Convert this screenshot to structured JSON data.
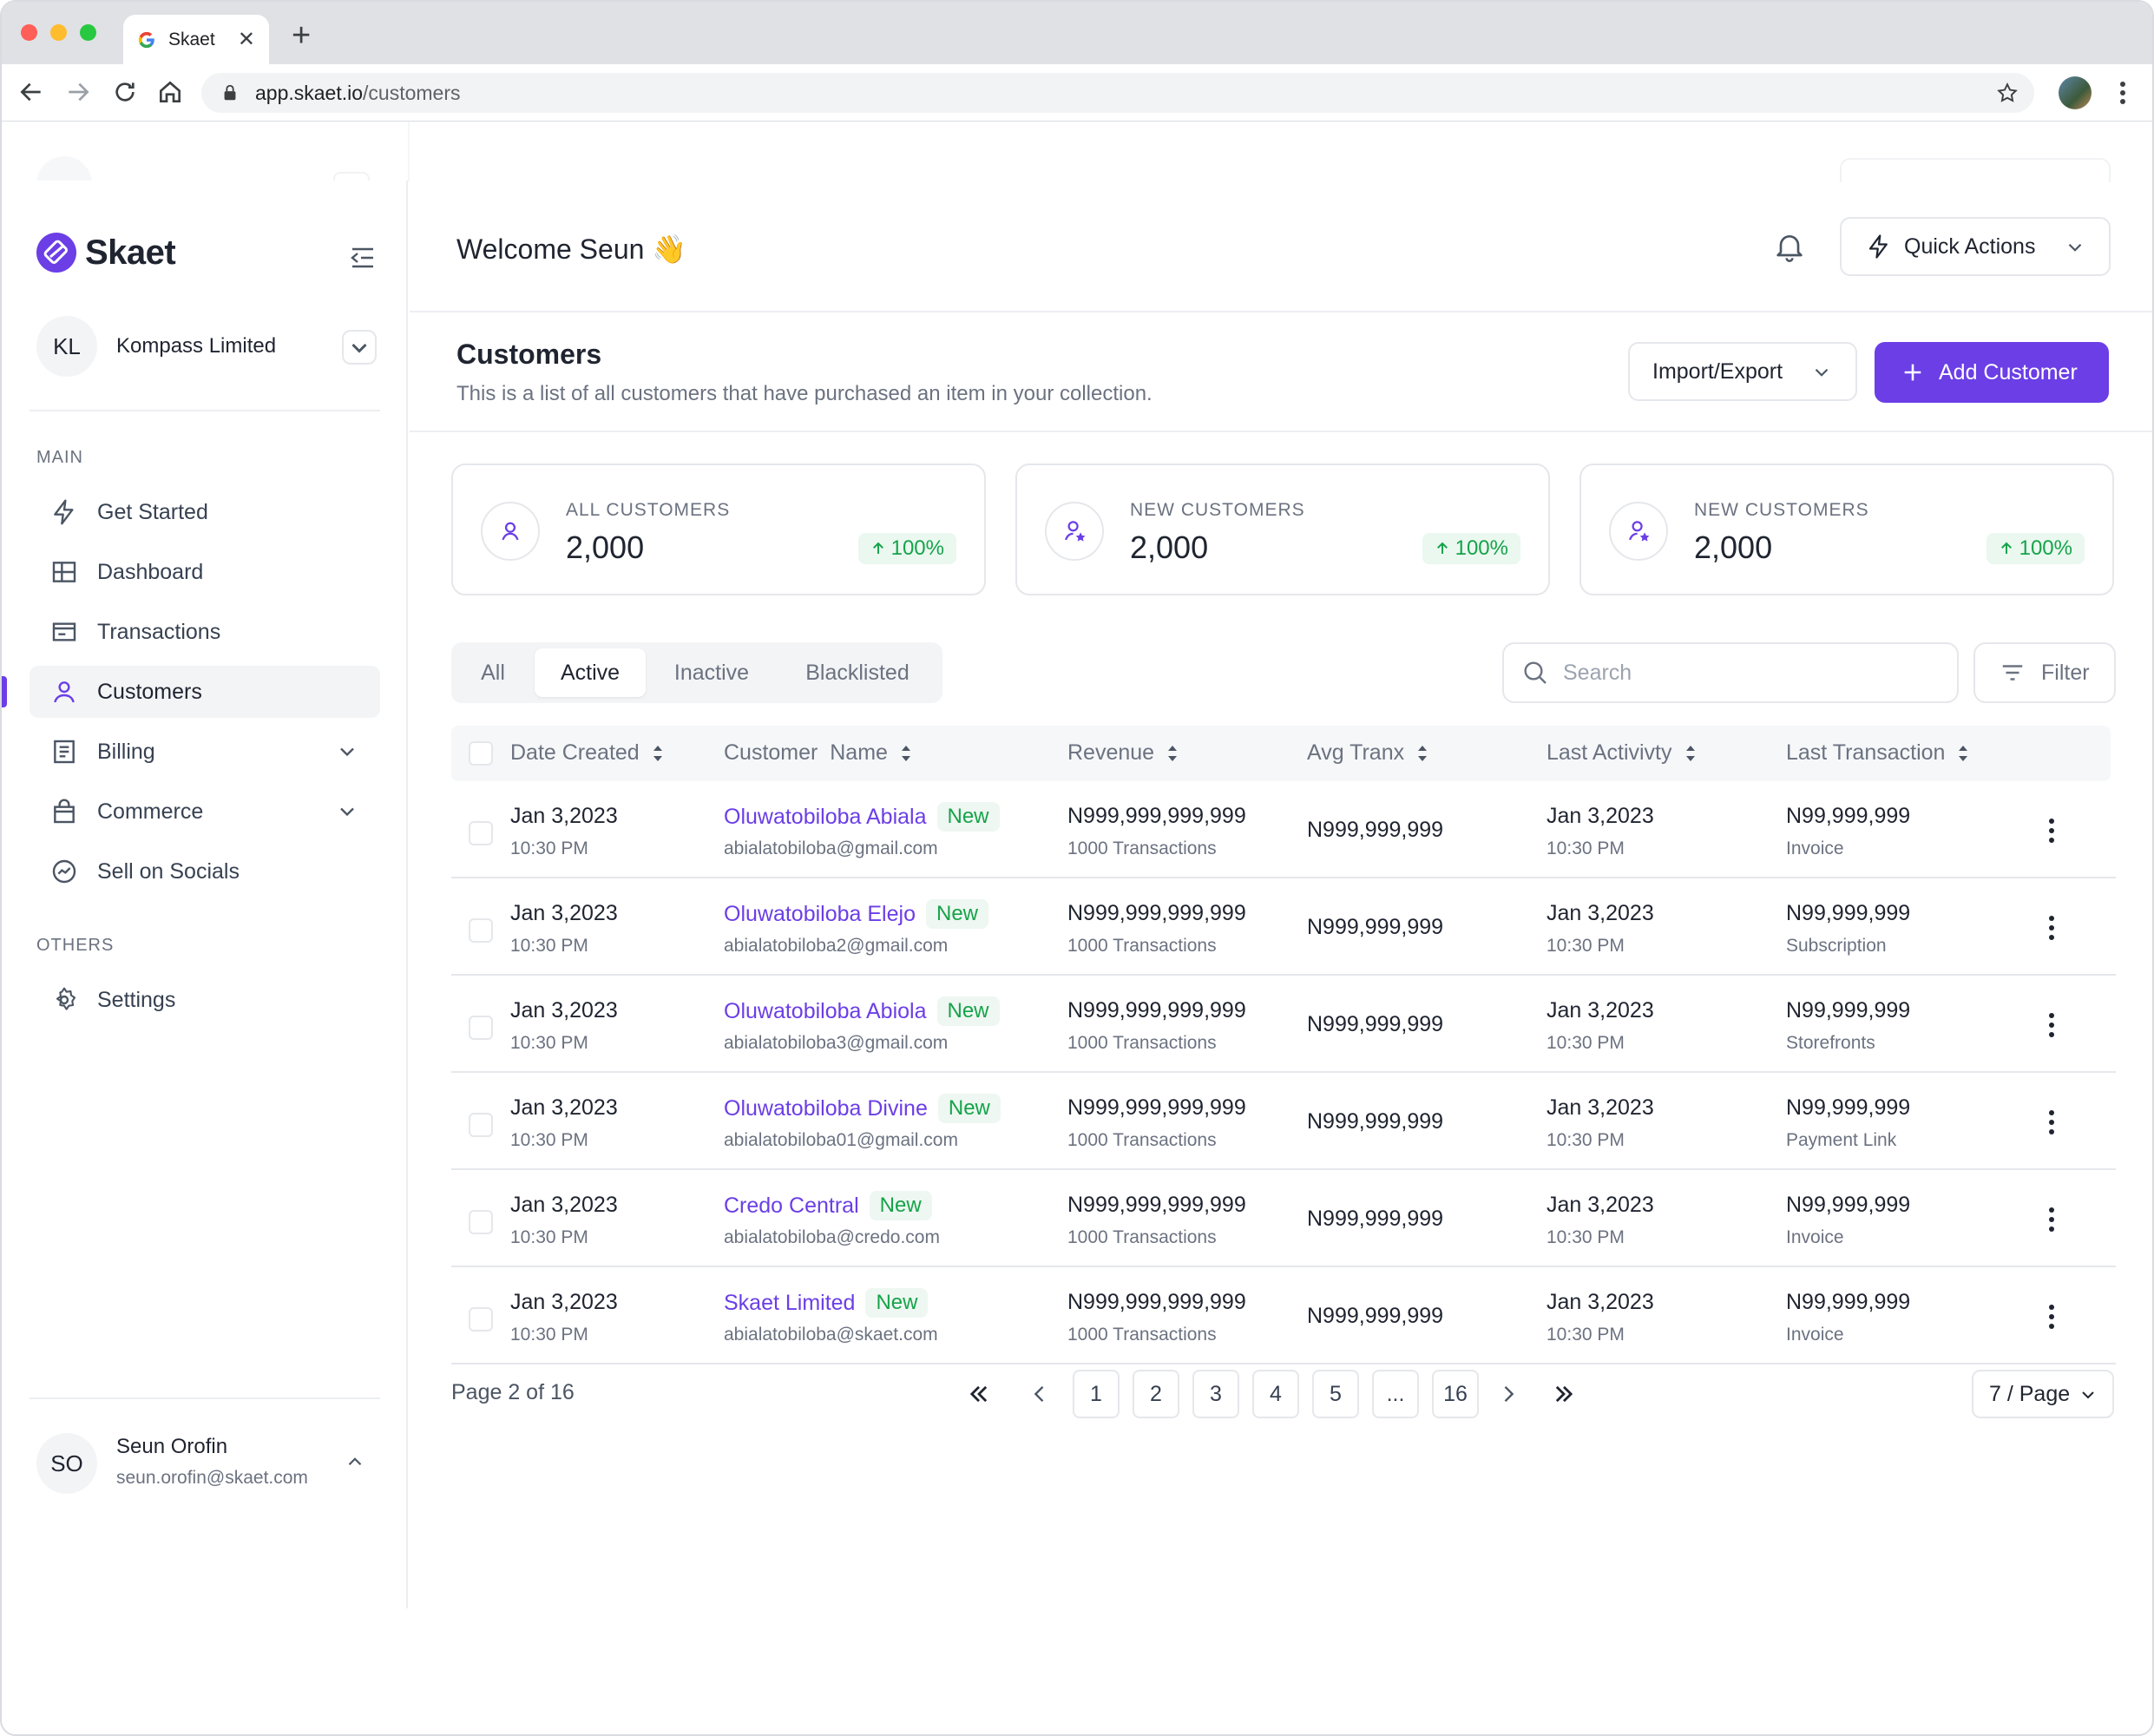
{
  "browser": {
    "tab_title": "Skaet",
    "url_host": "app.skaet.io",
    "url_path": "/customers"
  },
  "sidebar": {
    "brand": "Skaet",
    "org": {
      "initials": "KL",
      "name": "Kompass Limited"
    },
    "main_label": "MAIN",
    "others_label": "OTHERS",
    "items": [
      {
        "label": "Get Started",
        "icon": "bolt-icon"
      },
      {
        "label": "Dashboard",
        "icon": "grid-icon"
      },
      {
        "label": "Transactions",
        "icon": "card-icon"
      },
      {
        "label": "Customers",
        "icon": "user-icon",
        "active": true
      },
      {
        "label": "Billing",
        "icon": "receipt-icon",
        "expandable": true
      },
      {
        "label": "Commerce",
        "icon": "bag-icon",
        "expandable": true
      },
      {
        "label": "Sell on Socials",
        "icon": "trend-icon"
      }
    ],
    "settings_label": "Settings",
    "user": {
      "initials": "SO",
      "name": "Seun Orofin",
      "email": "seun.orofin@skaet.com"
    }
  },
  "topbar": {
    "welcome": "Welcome Seun 👋",
    "quick_actions": "Quick Actions"
  },
  "page": {
    "title": "Customers",
    "subtitle": "This is a list of all customers that have purchased an item in your collection.",
    "import_export": "Import/Export",
    "add_customer": "Add Customer"
  },
  "stats": [
    {
      "label": "ALL CUSTOMERS",
      "value": "2,000",
      "change": "100%"
    },
    {
      "label": "NEW CUSTOMERS",
      "value": "2,000",
      "change": "100%"
    },
    {
      "label": "NEW CUSTOMERS",
      "value": "2,000",
      "change": "100%"
    }
  ],
  "tabs": [
    "All",
    "Active",
    "Inactive",
    "Blacklisted"
  ],
  "active_tab": "Active",
  "search_placeholder": "Search",
  "filter_label": "Filter",
  "columns": [
    "Date Created",
    "Customer  Name",
    "Revenue",
    "Avg Tranx",
    "Last Activivty",
    "Last Transaction"
  ],
  "rows": [
    {
      "date": "Jan 3,2023",
      "time": "10:30 PM",
      "name": "Oluwatobiloba Abiala",
      "badge": "New",
      "email": "abialatobiloba@gmail.com",
      "revenue": "N999,999,999,999",
      "tx_count": "1000 Transactions",
      "avg": "N999,999,999",
      "last_date": "Jan 3,2023",
      "last_time": "10:30 PM",
      "last_amount": "N99,999,999",
      "last_type": "Invoice"
    },
    {
      "date": "Jan 3,2023",
      "time": "10:30 PM",
      "name": "Oluwatobiloba Elejo",
      "badge": "New",
      "email": "abialatobiloba2@gmail.com",
      "revenue": "N999,999,999,999",
      "tx_count": "1000 Transactions",
      "avg": "N999,999,999",
      "last_date": "Jan 3,2023",
      "last_time": "10:30 PM",
      "last_amount": "N99,999,999",
      "last_type": "Subscription"
    },
    {
      "date": "Jan 3,2023",
      "time": "10:30 PM",
      "name": "Oluwatobiloba Abiola",
      "badge": "New",
      "email": "abialatobiloba3@gmail.com",
      "revenue": "N999,999,999,999",
      "tx_count": "1000 Transactions",
      "avg": "N999,999,999",
      "last_date": "Jan 3,2023",
      "last_time": "10:30 PM",
      "last_amount": "N99,999,999",
      "last_type": "Storefronts"
    },
    {
      "date": "Jan 3,2023",
      "time": "10:30 PM",
      "name": "Oluwatobiloba Divine",
      "badge": "New",
      "email": "abialatobiloba01@gmail.com",
      "revenue": "N999,999,999,999",
      "tx_count": "1000 Transactions",
      "avg": "N999,999,999",
      "last_date": "Jan 3,2023",
      "last_time": "10:30 PM",
      "last_amount": "N99,999,999",
      "last_type": "Payment Link"
    },
    {
      "date": "Jan 3,2023",
      "time": "10:30 PM",
      "name": "Credo Central",
      "badge": "New",
      "email": "abialatobiloba@credo.com",
      "revenue": "N999,999,999,999",
      "tx_count": "1000 Transactions",
      "avg": "N999,999,999",
      "last_date": "Jan 3,2023",
      "last_time": "10:30 PM",
      "last_amount": "N99,999,999",
      "last_type": "Invoice"
    },
    {
      "date": "Jan 3,2023",
      "time": "10:30 PM",
      "name": "Skaet Limited",
      "badge": "New",
      "email": "abialatobiloba@skaet.com",
      "revenue": "N999,999,999,999",
      "tx_count": "1000 Transactions",
      "avg": "N999,999,999",
      "last_date": "Jan 3,2023",
      "last_time": "10:30 PM",
      "last_amount": "N99,999,999",
      "last_type": "Invoice"
    }
  ],
  "pagination": {
    "label": "Page 2 of 16",
    "pages": [
      "1",
      "2",
      "3",
      "4",
      "5",
      "...",
      "16"
    ],
    "per_page": "7 / Page"
  },
  "colors": {
    "accent": "#6b3ee6",
    "positive": "#16a34a"
  }
}
